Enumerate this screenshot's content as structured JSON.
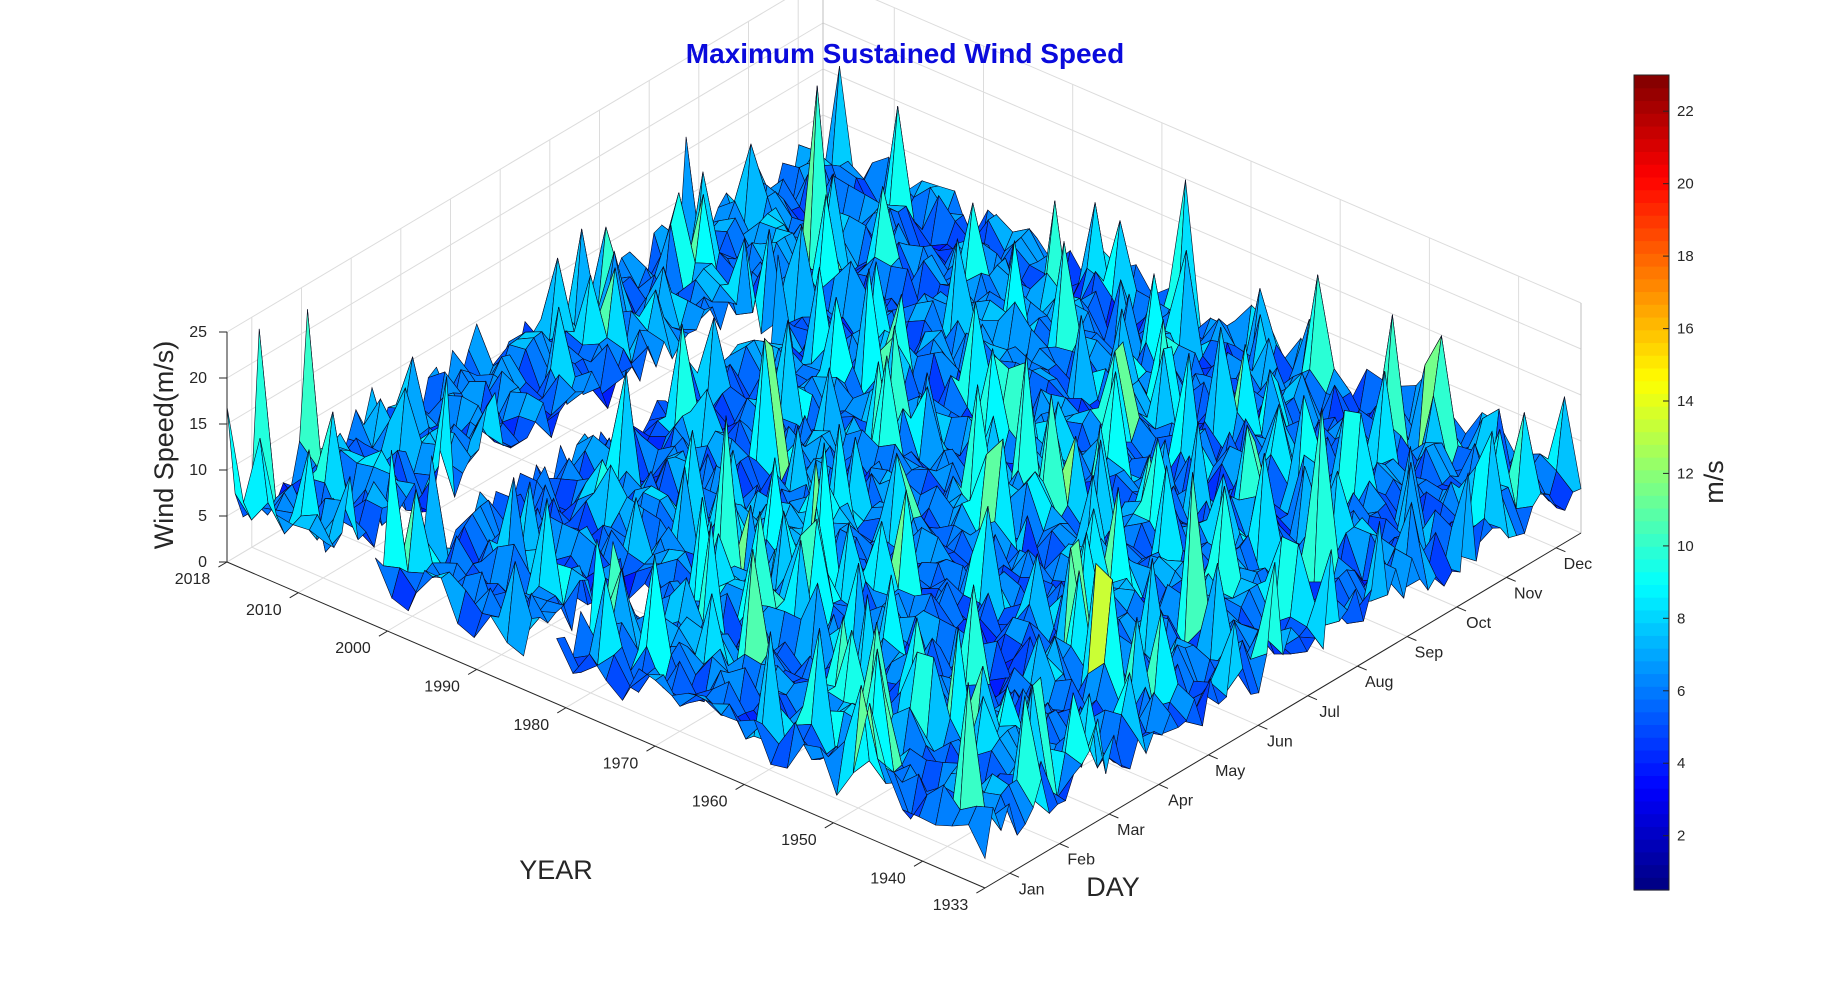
{
  "chart_data": {
    "type": "surface",
    "title": "Maximum Sustained Wind Speed",
    "xlabel": "DAY",
    "ylabel": "YEAR",
    "zlabel": "Wind Speed(m/s)",
    "colorbar_label": "m/s",
    "title_color": "#0a0adc",
    "colormap": "jet",
    "grid": true,
    "x_ticks": [
      "Jan",
      "Feb",
      "Mar",
      "Apr",
      "May",
      "Jun",
      "Jul",
      "Aug",
      "Sep",
      "Oct",
      "Nov",
      "Dec"
    ],
    "y_ticks": [
      "1933",
      "1940",
      "1950",
      "1960",
      "1970",
      "1980",
      "1990",
      "2000",
      "2010",
      "2018"
    ],
    "y_range": [
      1933,
      2018
    ],
    "z_ticks": [
      "0",
      "5",
      "10",
      "15",
      "20",
      "25"
    ],
    "z_range": [
      0,
      25
    ],
    "colorbar_ticks": [
      "2",
      "4",
      "6",
      "8",
      "10",
      "12",
      "14",
      "16",
      "18",
      "20",
      "22"
    ],
    "colorbar_range": [
      0.5,
      23
    ]
  }
}
